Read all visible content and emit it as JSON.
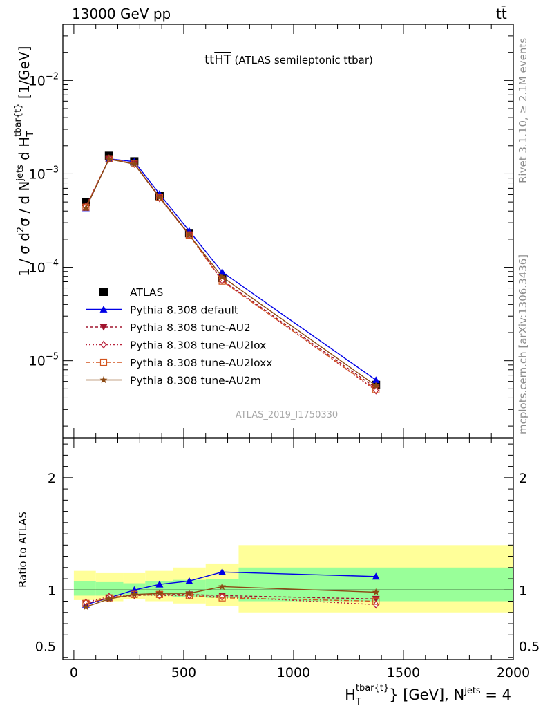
{
  "header": {
    "left": "13000 GeV pp",
    "right": "tt̄"
  },
  "side_labels": {
    "rivet": "Rivet 3.1.10, ≥ 2.1M events",
    "mcplots": "mcplots.cern.ch [arXiv:1306.3436]"
  },
  "colors": {
    "data": "#000000",
    "default": "#0000e6",
    "au2": "#a0132d",
    "au2lox": "#b9213a",
    "au2loxx": "#d2541e",
    "au2m": "#8c4a14",
    "band_inner": "#99ff99",
    "band_outer": "#ffff99"
  },
  "chart_data": [
    {
      "type": "line",
      "title": "ttHT (ATLAS semileptonic ttbar)",
      "watermark": "ATLAS_2019_I1750330",
      "ylabel": "1 / σ d²σ / d N^jets d H_T^tbar{t} [1/GeV]",
      "yscale": "log",
      "ylim": [
        1.5e-06,
        0.04
      ],
      "xlim": [
        -50,
        2000
      ],
      "y_tick_labels": [
        "10^-5",
        "10^-4",
        "10^-3",
        "10^-2"
      ],
      "x": [
        55,
        160,
        275,
        390,
        525,
        675,
        1375
      ],
      "legend_position": "bottom-left",
      "series": [
        {
          "name": "ATLAS",
          "key": "data",
          "marker": "square",
          "values": [
            0.0005,
            0.00156,
            0.00136,
            0.00058,
            0.000232,
            7.7e-05,
            5.5e-06
          ]
        },
        {
          "name": "Pythia 8.308 default",
          "key": "default",
          "marker": "triangle-up",
          "dash": "solid",
          "values": [
            0.00043,
            0.00145,
            0.00135,
            0.00061,
            0.000245,
            8.9e-05,
            6.2e-06
          ]
        },
        {
          "name": "Pythia 8.308 tune-AU2",
          "key": "au2",
          "marker": "triangle-down",
          "dash": "4,3",
          "values": [
            0.00044,
            0.00144,
            0.00128,
            0.00057,
            0.000225,
            7.3e-05,
            5.1e-06
          ]
        },
        {
          "name": "Pythia 8.308 tune-AU2lox",
          "key": "au2lox",
          "marker": "diamond",
          "dash": "2,3",
          "values": [
            0.00045,
            0.00146,
            0.00128,
            0.00055,
            0.000222,
            7.2e-05,
            4.8e-06
          ]
        },
        {
          "name": "Pythia 8.308 tune-AU2loxx",
          "key": "au2loxx",
          "marker": "square-open",
          "dash": "7,3,2,3",
          "values": [
            0.00044,
            0.00145,
            0.00129,
            0.00056,
            0.000221,
            7.1e-05,
            4.9e-06
          ]
        },
        {
          "name": "Pythia 8.308 tune-AU2m",
          "key": "au2m",
          "marker": "star",
          "dash": "solid",
          "values": [
            0.00043,
            0.00144,
            0.00127,
            0.00056,
            0.000222,
            7.9e-05,
            5.4e-06
          ]
        }
      ]
    },
    {
      "type": "line",
      "ylabel": "Ratio to ATLAS",
      "xlabel": "H_T^tbar{t} [GeV], N^jets = 4",
      "ylim": [
        0.38,
        2.35
      ],
      "xlim": [
        -50,
        2000
      ],
      "y_tick_labels": [
        "0.5",
        "1",
        "2"
      ],
      "x_tick_labels": [
        "0",
        "500",
        "1000",
        "1500",
        "2000"
      ],
      "x": [
        55,
        160,
        275,
        390,
        525,
        675,
        1375
      ],
      "bands": {
        "edges": [
          0,
          100,
          225,
          325,
          450,
          600,
          750,
          2000
        ],
        "inner": [
          [
            0.95,
            1.08
          ],
          [
            0.95,
            1.07
          ],
          [
            0.96,
            1.06
          ],
          [
            0.95,
            1.08
          ],
          [
            0.94,
            1.09
          ],
          [
            0.93,
            1.1
          ],
          [
            0.9,
            1.2
          ]
        ],
        "outer": [
          [
            0.91,
            1.17
          ],
          [
            0.9,
            1.15
          ],
          [
            0.92,
            1.15
          ],
          [
            0.9,
            1.17
          ],
          [
            0.88,
            1.2
          ],
          [
            0.86,
            1.23
          ],
          [
            0.8,
            1.4
          ]
        ]
      },
      "series": [
        {
          "key": "default",
          "values": [
            0.87,
            0.93,
            1.0,
            1.05,
            1.08,
            1.16,
            1.12
          ]
        },
        {
          "key": "au2",
          "values": [
            0.88,
            0.93,
            0.95,
            0.96,
            0.96,
            0.95,
            0.92
          ]
        },
        {
          "key": "au2lox",
          "values": [
            0.89,
            0.94,
            0.96,
            0.95,
            0.95,
            0.94,
            0.87
          ]
        },
        {
          "key": "au2loxx",
          "values": [
            0.88,
            0.93,
            0.96,
            0.96,
            0.95,
            0.93,
            0.9
          ]
        },
        {
          "key": "au2m",
          "values": [
            0.85,
            0.92,
            0.96,
            0.97,
            0.97,
            1.03,
            0.98
          ]
        }
      ]
    }
  ]
}
